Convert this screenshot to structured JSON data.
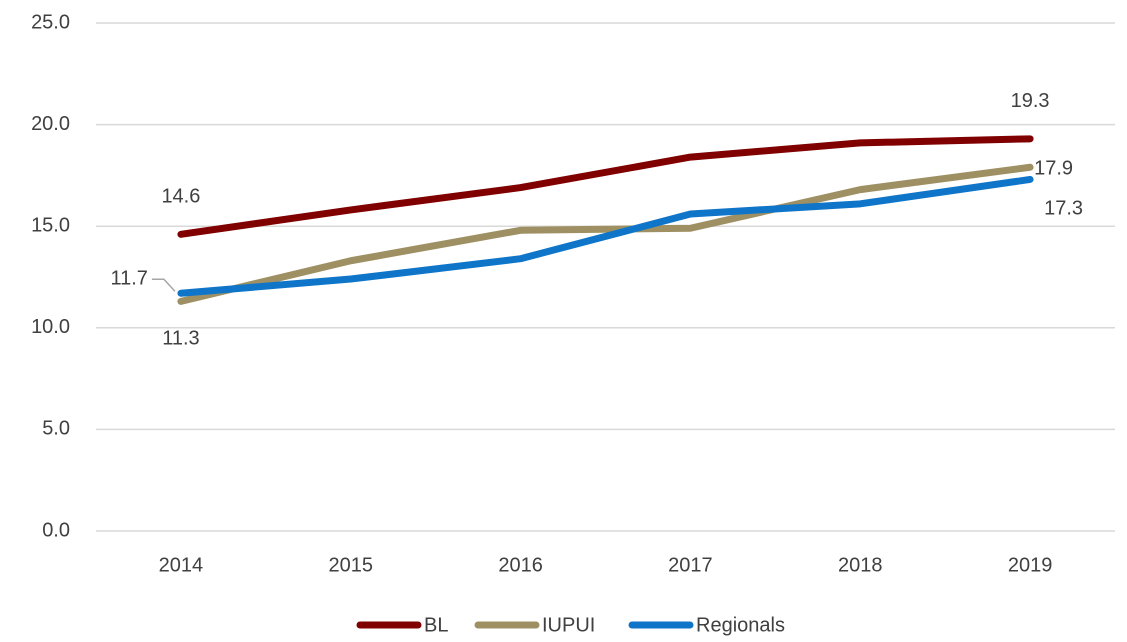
{
  "chart_data": {
    "type": "line",
    "categories": [
      "2014",
      "2015",
      "2016",
      "2017",
      "2018",
      "2019"
    ],
    "series": [
      {
        "name": "BL",
        "color": "#800000",
        "values": [
          14.6,
          15.8,
          16.9,
          18.4,
          19.1,
          19.3
        ],
        "value_labels": [
          "14.6",
          null,
          null,
          null,
          null,
          "19.3"
        ]
      },
      {
        "name": "IUPUI",
        "color": "#9e9063",
        "values": [
          11.3,
          13.3,
          14.8,
          14.9,
          16.8,
          17.9
        ],
        "value_labels": [
          "11.3",
          null,
          null,
          null,
          null,
          "17.9"
        ]
      },
      {
        "name": "Regionals",
        "color": "#0f75c9",
        "values": [
          11.7,
          12.4,
          13.4,
          15.6,
          16.1,
          17.3
        ],
        "value_labels": [
          "11.7",
          null,
          null,
          null,
          null,
          "17.3"
        ]
      }
    ],
    "ylim": [
      0,
      25
    ],
    "yticks": [
      {
        "value": 0,
        "label": "0.0"
      },
      {
        "value": 5,
        "label": "5.0"
      },
      {
        "value": 10,
        "label": "10.0"
      },
      {
        "value": 15,
        "label": "15.0"
      },
      {
        "value": 20,
        "label": "20.0"
      },
      {
        "value": 25,
        "label": "25.0"
      }
    ],
    "grid": true,
    "legend": "bottom"
  }
}
